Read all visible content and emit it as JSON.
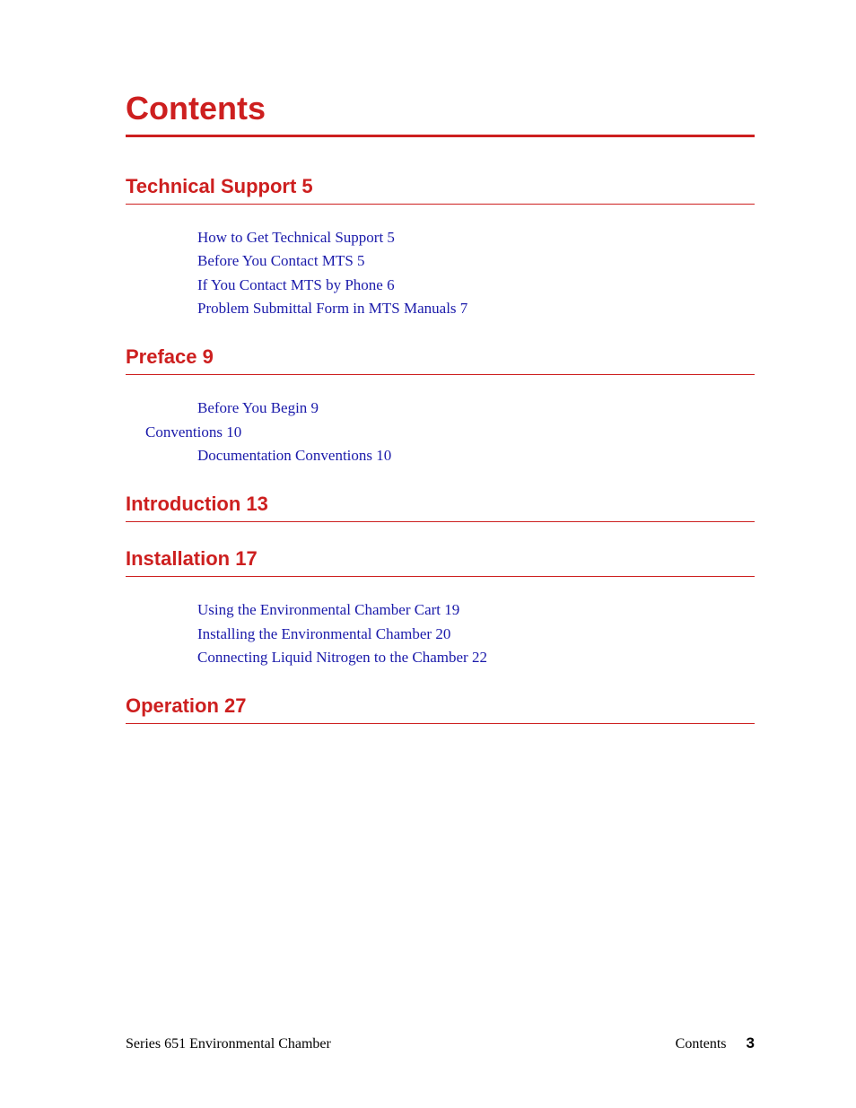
{
  "colors": {
    "accent": "#cd1f1f",
    "link": "#1a1aaa",
    "text": "#000000",
    "background": "#ffffff"
  },
  "title": "Contents",
  "sections": [
    {
      "heading": "Technical Support 5",
      "entries": [
        {
          "level": 2,
          "text": "How to Get Technical Support 5"
        },
        {
          "level": 2,
          "text": "Before You Contact MTS 5"
        },
        {
          "level": 2,
          "text": "If You Contact MTS by Phone 6"
        },
        {
          "level": 2,
          "text": "Problem Submittal Form in MTS Manuals 7"
        }
      ]
    },
    {
      "heading": "Preface 9",
      "entries": [
        {
          "level": 2,
          "text": "Before You Begin 9"
        },
        {
          "level": 1,
          "text": "Conventions 10"
        },
        {
          "level": 2,
          "text": "Documentation Conventions 10"
        }
      ]
    },
    {
      "heading": "Introduction 13",
      "entries": []
    },
    {
      "heading": "Installation 17",
      "entries": [
        {
          "level": 2,
          "text": "Using the Environmental Chamber Cart 19"
        },
        {
          "level": 2,
          "text": "Installing the Environmental Chamber 20"
        },
        {
          "level": 2,
          "text": "Connecting Liquid Nitrogen to the Chamber 22"
        }
      ]
    },
    {
      "heading": "Operation 27",
      "entries": []
    }
  ],
  "footer": {
    "left": "Series 651 Environmental Chamber",
    "right_label": "Contents",
    "page_number": "3"
  }
}
